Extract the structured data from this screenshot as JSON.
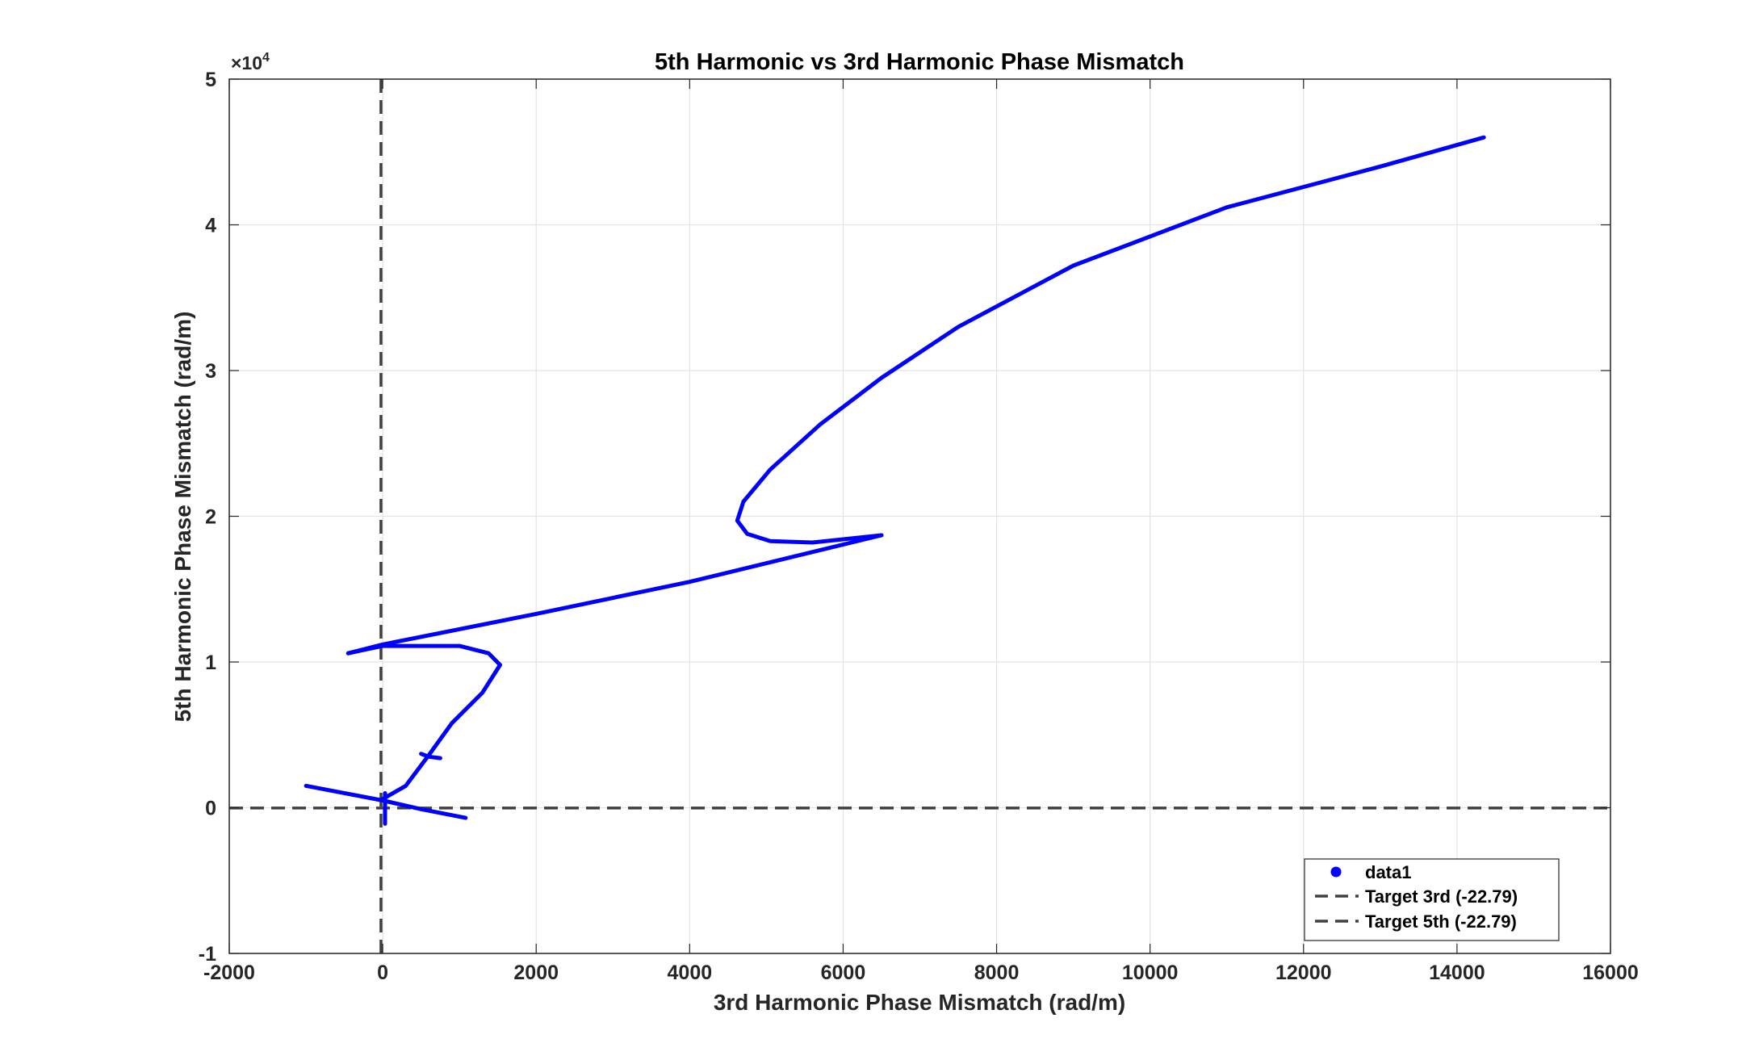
{
  "chart_data": {
    "type": "scatter",
    "title": "5th Harmonic vs 3rd Harmonic Phase Mismatch",
    "xlabel": "3rd Harmonic Phase Mismatch (rad/m)",
    "ylabel": "5th Harmonic Phase Mismatch (rad/m)",
    "xlim": [
      -2000,
      16000
    ],
    "ylim": [
      -10000,
      50000
    ],
    "x_ticks": [
      -2000,
      0,
      2000,
      4000,
      6000,
      8000,
      10000,
      12000,
      14000,
      16000
    ],
    "x_tick_labels": [
      "-2000",
      "0",
      "2000",
      "4000",
      "6000",
      "8000",
      "10000",
      "12000",
      "14000",
      "16000"
    ],
    "y_ticks": [
      -10000,
      0,
      10000,
      20000,
      30000,
      40000,
      50000
    ],
    "y_tick_labels": [
      "-1",
      "0",
      "1",
      "2",
      "3",
      "4",
      "5"
    ],
    "y_exponent": {
      "base": "×10",
      "power": "4"
    },
    "grid": true,
    "legend_position": "bottom-right",
    "colors": {
      "data": "#0000ff",
      "reference": "#404040"
    },
    "series": [
      {
        "name": "data1",
        "style": "dots",
        "segments": [
          [
            [
              1080,
              -700
            ],
            [
              500,
              -100
            ],
            [
              0,
              500
            ],
            [
              -1000,
              1500
            ]
          ],
          [
            [
              14350,
              46000
            ],
            [
              13000,
              44000
            ],
            [
              11000,
              41200
            ],
            [
              9000,
              37200
            ],
            [
              7500,
              33000
            ],
            [
              6500,
              29500
            ],
            [
              5700,
              26300
            ],
            [
              5050,
              23200
            ],
            [
              4700,
              21000
            ],
            [
              4620,
              19700
            ],
            [
              4750,
              18800
            ],
            [
              5050,
              18300
            ],
            [
              5600,
              18200
            ],
            [
              6500,
              18700
            ]
          ],
          [
            [
              6500,
              18700
            ],
            [
              4000,
              15500
            ],
            [
              2000,
              13300
            ],
            [
              0,
              11200
            ],
            [
              -450,
              10600
            ]
          ],
          [
            [
              -450,
              10600
            ],
            [
              0,
              11100
            ],
            [
              500,
              11100
            ],
            [
              1000,
              11100
            ],
            [
              1380,
              10600
            ],
            [
              1530,
              9800
            ],
            [
              1300,
              7900
            ],
            [
              900,
              5800
            ],
            [
              600,
              3600
            ],
            [
              300,
              1500
            ],
            [
              0,
              600
            ]
          ],
          [
            [
              500,
              3700
            ],
            [
              600,
              3500
            ],
            [
              750,
              3400
            ]
          ],
          [
            [
              30,
              1000
            ],
            [
              30,
              500
            ],
            [
              30,
              -1100
            ]
          ]
        ]
      },
      {
        "name": "Target 3rd (-22.79)",
        "style": "dashed",
        "orientation": "vertical",
        "value": -22.79
      },
      {
        "name": "Target 5th (-22.79)",
        "style": "dashed",
        "orientation": "horizontal",
        "value": -22.79
      }
    ]
  }
}
